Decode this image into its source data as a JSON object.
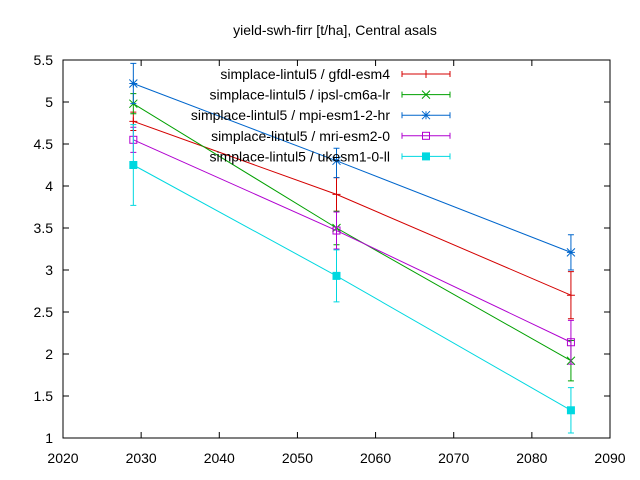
{
  "chart_data": {
    "type": "line",
    "title": "yield-swh-firr [t/ha], Central asals",
    "xlabel": "",
    "ylabel": "",
    "xlim": [
      2020,
      2090
    ],
    "ylim": [
      1,
      5.5
    ],
    "xticks": [
      2020,
      2030,
      2040,
      2050,
      2060,
      2070,
      2080,
      2090
    ],
    "yticks": [
      1,
      1.5,
      2,
      2.5,
      3,
      3.5,
      4,
      4.5,
      5,
      5.5
    ],
    "ytick_labels": [
      "1",
      "1.5",
      "2",
      "2.5",
      "3",
      "3.5",
      "4",
      "4.5",
      "5",
      "5.5"
    ],
    "grid": false,
    "legend_position": "top-right",
    "error_bars": true,
    "series": [
      {
        "name": "simplace-lintul5 / gfdl-esm4",
        "color": "#d40000",
        "marker": "plus",
        "x": [
          2029,
          2055,
          2085
        ],
        "y": [
          4.77,
          3.9,
          2.7
        ],
        "err_low": [
          4.66,
          3.7,
          2.42
        ],
        "err_high": [
          4.88,
          4.1,
          2.98
        ]
      },
      {
        "name": "simplace-lintul5 / ipsl-cm6a-lr",
        "color": "#00a000",
        "marker": "cross",
        "x": [
          2029,
          2055,
          2085
        ],
        "y": [
          4.98,
          3.5,
          1.92
        ],
        "err_low": [
          4.86,
          3.3,
          1.68
        ],
        "err_high": [
          5.1,
          3.7,
          2.16
        ]
      },
      {
        "name": "simplace-lintul5 / mpi-esm1-2-hr",
        "color": "#0066cc",
        "marker": "star",
        "x": [
          2029,
          2055,
          2085
        ],
        "y": [
          5.22,
          4.3,
          3.21
        ],
        "err_low": [
          4.98,
          4.1,
          3.0
        ],
        "err_high": [
          5.46,
          4.45,
          3.42
        ]
      },
      {
        "name": "simplace-lintul5 / mri-esm2-0",
        "color": "#b000d0",
        "marker": "square-open",
        "x": [
          2029,
          2055,
          2085
        ],
        "y": [
          4.55,
          3.47,
          2.14
        ],
        "err_low": [
          4.4,
          3.25,
          1.88
        ],
        "err_high": [
          4.7,
          3.69,
          2.4
        ]
      },
      {
        "name": "simplace-lintul5 / ukesm1-0-ll",
        "color": "#00d8e0",
        "marker": "square-filled",
        "x": [
          2029,
          2055,
          2085
        ],
        "y": [
          4.25,
          2.93,
          1.33
        ],
        "err_low": [
          3.77,
          2.62,
          1.06
        ],
        "err_high": [
          4.73,
          3.24,
          1.6
        ]
      }
    ]
  }
}
